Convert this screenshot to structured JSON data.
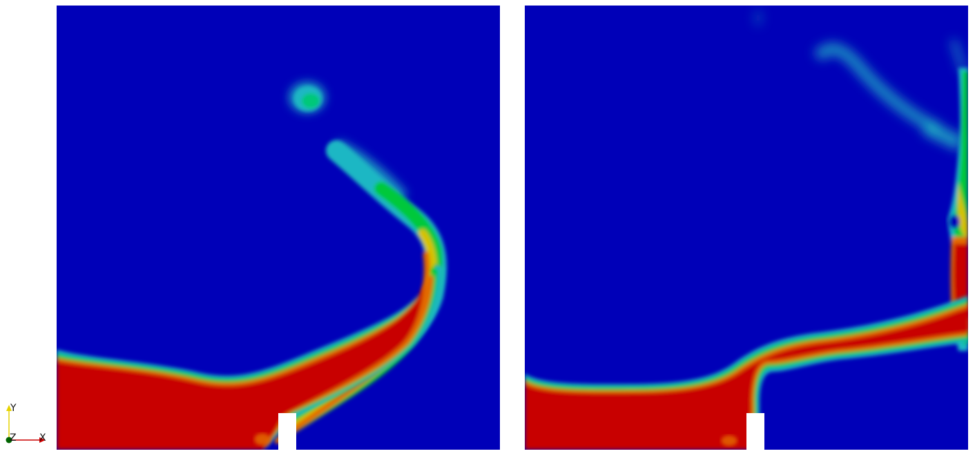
{
  "colors": {
    "background": "#0000b8",
    "cyan": "#1fb7c4",
    "green": "#00c83a",
    "yellow": "#d6c200",
    "orange": "#e36a00",
    "red": "#c80000",
    "obstacle": "#ffffff"
  },
  "orientation_axes": {
    "y_label": "Y",
    "z_label": "Z",
    "x_label": "X",
    "x_color": "#cc0000",
    "y_color": "#e6d200",
    "z_color": "#006400"
  }
}
